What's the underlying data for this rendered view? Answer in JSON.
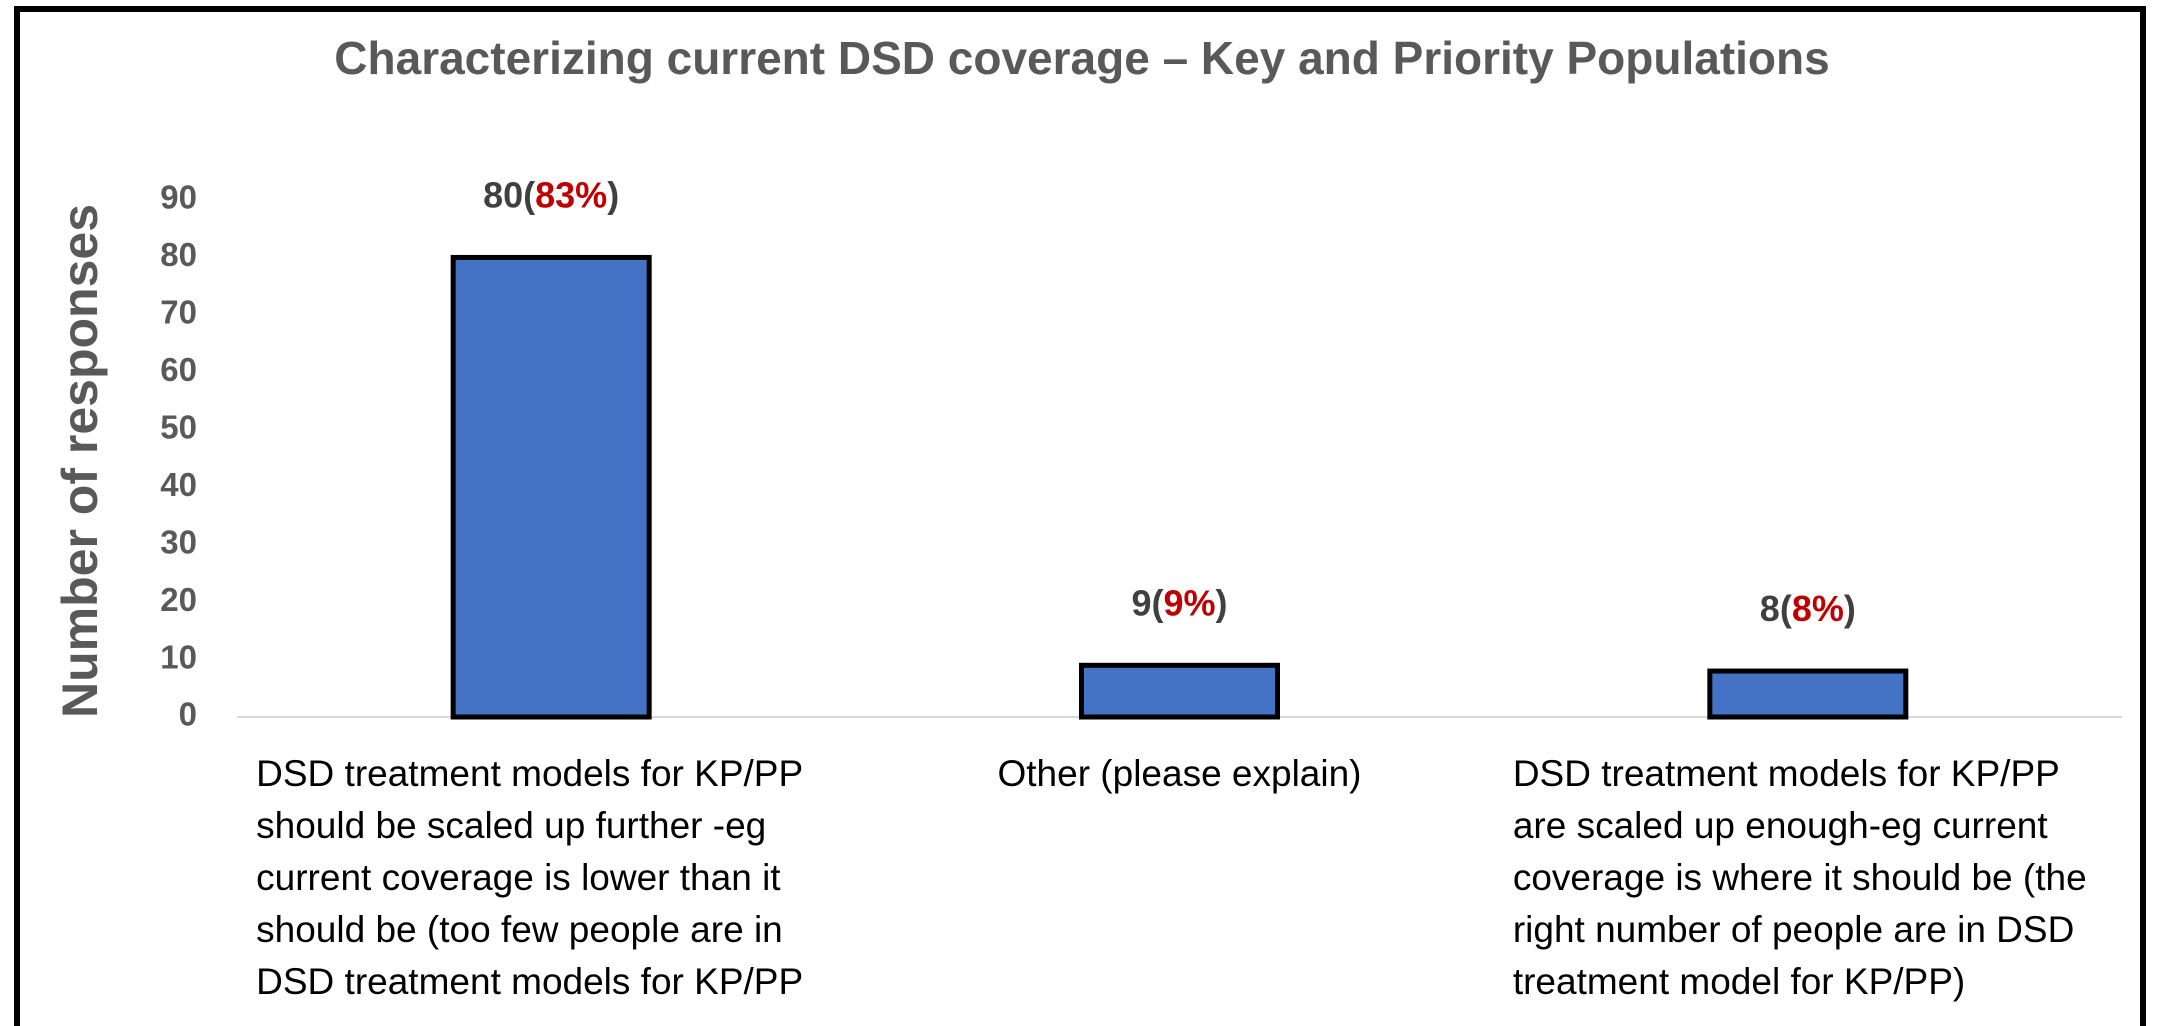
{
  "chart_data": {
    "type": "bar",
    "title": "Characterizing current DSD coverage – Key and Priority Populations",
    "y_label": "Number of responses",
    "categories": [
      "DSD treatment models for KP/PP should be scaled up further -eg current coverage is lower than it should be (too few people are in DSD treatment models for KP/PP",
      "Other (please explain)",
      "DSD treatment models for KP/PP are scaled up enough-eg current coverage is where it should be (the right number of people are in DSD treatment model for KP/PP)"
    ],
    "values": [
      80,
      9,
      8
    ],
    "value_labels": [
      "80(83%)",
      "9(9%)",
      "8(8%)"
    ],
    "color": "#4472c4",
    "ylim": [
      0,
      90
    ],
    "yticks": [
      0,
      10,
      20,
      30,
      40,
      50,
      60,
      70,
      80,
      90
    ],
    "grid": false
  }
}
